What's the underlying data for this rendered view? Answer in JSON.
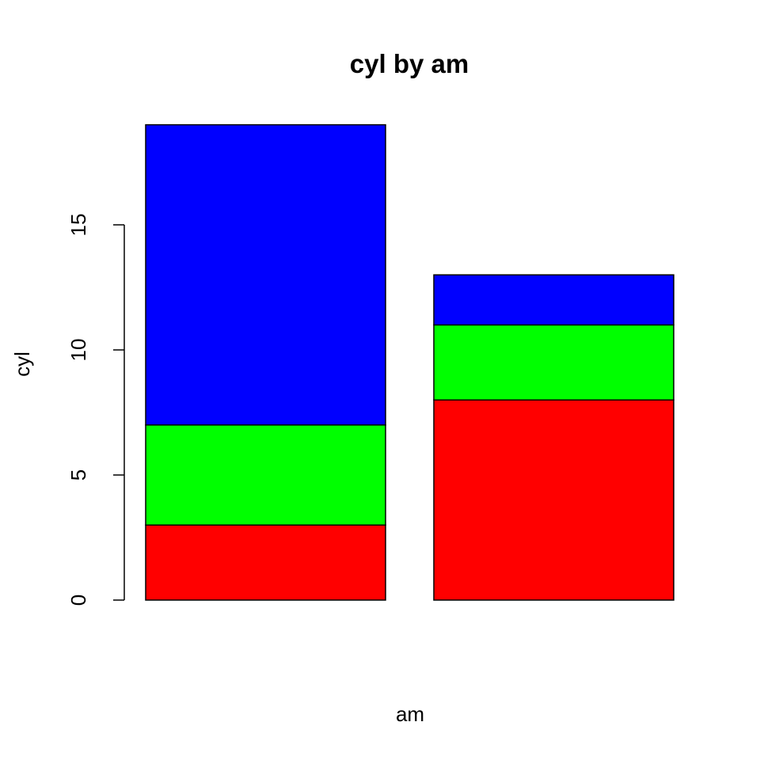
{
  "chart_data": {
    "type": "bar",
    "stacked": true,
    "title": "cyl by am",
    "xlabel": "am",
    "ylabel": "cyl",
    "categories": [
      "",
      ""
    ],
    "series": [
      {
        "values": [
          3,
          8
        ],
        "color": "#ff0000"
      },
      {
        "values": [
          4,
          3
        ],
        "color": "#00ff00"
      },
      {
        "values": [
          12,
          2
        ],
        "color": "#0000ff"
      }
    ],
    "yticks": [
      0,
      5,
      10,
      15
    ],
    "ylim": [
      0,
      19
    ],
    "grid": false,
    "legend": "none"
  }
}
